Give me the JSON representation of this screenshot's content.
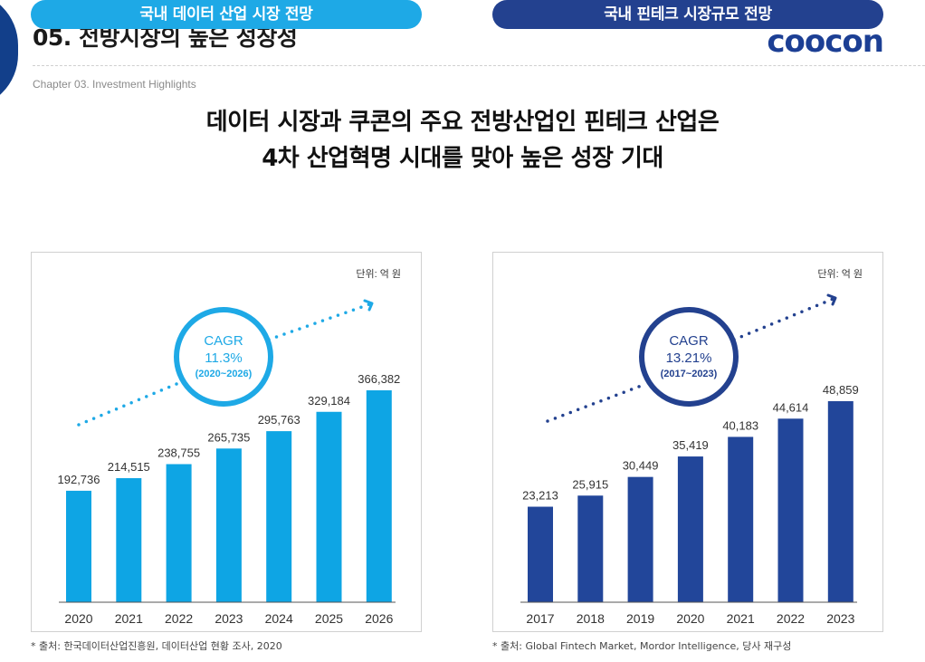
{
  "header": {
    "title": "05. 전방시장의 높은 성장성",
    "logo": "coocon",
    "chapter": "Chapter 03. Investment Highlights"
  },
  "headline": {
    "line1": "데이터 시장과 쿠콘의 주요 전방산업인 핀테크 산업은",
    "line2": "4차 산업혁명 시대를 맞아 높은 성장 기대"
  },
  "colors": {
    "left_bar": "#0ea5e4",
    "right_bar": "#22469a",
    "left_accent": "#1ea9e6",
    "right_accent": "#23418f"
  },
  "chart_data": [
    {
      "type": "bar",
      "title": "국내 데이터 산업 시장 전망",
      "unit": "단위: 억 원",
      "categories": [
        "2020",
        "2021",
        "2022",
        "2023",
        "2024",
        "2025",
        "2026"
      ],
      "values": [
        192736,
        214515,
        238755,
        265735,
        295763,
        329184,
        366382
      ],
      "value_labels": [
        "192,736",
        "214,515",
        "238,755",
        "265,735",
        "295,763",
        "329,184",
        "366,382"
      ],
      "cagr": {
        "label": "CAGR",
        "value": "11.3%",
        "period": "(2020~2026)"
      },
      "source": "* 출처: 한국데이터산업진흥원, 데이터산업 현황 조사, 2020"
    },
    {
      "type": "bar",
      "title": "국내 핀테크 시장규모 전망",
      "unit": "단위: 억 원",
      "categories": [
        "2017",
        "2018",
        "2019",
        "2020",
        "2021",
        "2022",
        "2023"
      ],
      "values": [
        23213,
        25915,
        30449,
        35419,
        40183,
        44614,
        48859
      ],
      "value_labels": [
        "23,213",
        "25,915",
        "30,449",
        "35,419",
        "40,183",
        "44,614",
        "48,859"
      ],
      "cagr": {
        "label": "CAGR",
        "value": "13.21%",
        "period": "(2017~2023)"
      },
      "source": "* 출처: Global Fintech Market, Mordor Intelligence, 당사 재구성"
    }
  ]
}
